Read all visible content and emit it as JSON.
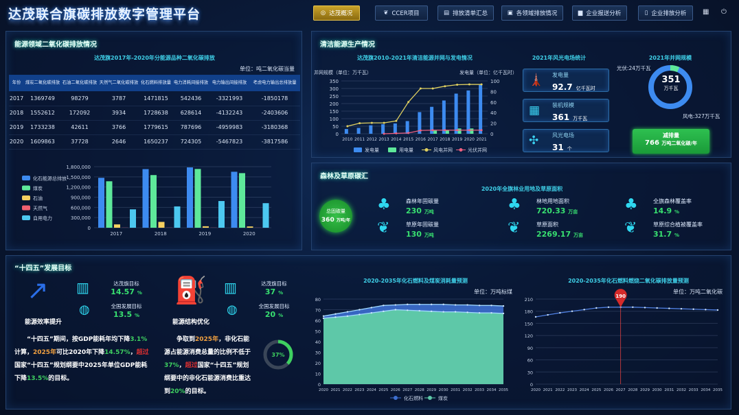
{
  "header": {
    "title": "达茂联合旗碳排放数字管理平台",
    "nav": [
      {
        "label": "达茂概况",
        "icon": "globe-icon",
        "active": true
      },
      {
        "label": "CCER项目",
        "icon": "leaf-icon"
      },
      {
        "label": "排放清单汇总",
        "icon": "list-icon"
      },
      {
        "label": "各领域排放情况",
        "icon": "clipboard-icon"
      },
      {
        "label": "企业报送分析",
        "icon": "chart-icon"
      },
      {
        "label": "企业排放分析",
        "icon": "document-icon"
      }
    ],
    "icons": [
      "calendar-icon",
      "power-icon"
    ]
  },
  "emissions": {
    "title": "能源领域二氧化碳排放情况",
    "table_title": "达茂旗2017年-2020年分能源品种二氧化碳排放",
    "unit": "单位：吨二氧化碳当量",
    "headers": [
      "年份",
      "煤炭二氧化碳排放",
      "石油二氧化碳排放",
      "天然气二氧化碳排放",
      "化石燃料排放量",
      "电力消耗间接排放",
      "电力输出间接排放",
      "考虑电力输出总排放量"
    ],
    "rows": [
      [
        "2017",
        "1369749",
        "98279",
        "3787",
        "1471815",
        "542436",
        "-3321993",
        "-1850178"
      ],
      [
        "2018",
        "1552612",
        "172092",
        "3934",
        "1728638",
        "628614",
        "-4132243",
        "-2403606"
      ],
      [
        "2019",
        "1733238",
        "42611",
        "3766",
        "1779615",
        "787696",
        "-4959983",
        "-3180368"
      ],
      [
        "2020",
        "1609863",
        "37728",
        "2646",
        "1650237",
        "724305",
        "-5467823",
        "-3817586"
      ]
    ]
  },
  "clean_energy": {
    "title": "清洁能源生产情况",
    "wind_solar": {
      "title": "2021年风光电场统计",
      "items": [
        {
          "label": "发电量",
          "value": "92.7",
          "unit": "亿千瓦时",
          "icon": "power-tower-icon"
        },
        {
          "label": "装机规模",
          "value": "361",
          "unit": "万千瓦",
          "icon": "solar-panel-icon"
        },
        {
          "label": "风光电场",
          "value": "31",
          "unit": "个",
          "icon": "wind-turbine-icon"
        }
      ]
    },
    "grid": {
      "title": "2021年并网规模",
      "total": "351",
      "unit": "万千瓦",
      "pv_label": "光伏:24万千瓦",
      "wind_label": "风电:327万千瓦",
      "pv_value": 24,
      "wind_value": 327,
      "pv_color": "#5ee89a",
      "wind_color": "#3d8bf0"
    },
    "reduction": {
      "label": "减排量",
      "value": "766",
      "unit": "万吨二氧化碳/年"
    }
  },
  "forest": {
    "title": "森林及草原碳汇",
    "subtitle": "2020年全旗林业用地及草原面积",
    "total": {
      "label": "总固碳量",
      "value": "360",
      "unit": "万吨/年"
    },
    "items": [
      {
        "label": "森林年固碳量",
        "value": "230",
        "unit": "万吨",
        "icon": "tree-icon"
      },
      {
        "label": "草原年固碳量",
        "value": "130",
        "unit": "万吨",
        "icon": "sprout-icon"
      },
      {
        "label": "林地用地面积",
        "value": "720.33",
        "unit": "万亩",
        "icon": "tree-icon"
      },
      {
        "label": "草原面积",
        "value": "2269.17",
        "unit": "万亩",
        "icon": "sprout-icon"
      },
      {
        "label": "全旗森林覆盖率",
        "value": "14.9",
        "unit": "%",
        "icon": "tree-icon"
      },
      {
        "label": "草原综合植被覆盖率",
        "value": "31.7",
        "unit": "%",
        "icon": "sprout-icon"
      }
    ]
  },
  "goals": {
    "title": "“十四五”发展目标",
    "efficiency": {
      "name": "能源效率提升",
      "local_label": "达茂旗目标",
      "local_value": "14.57",
      "national_label": "全国发展目标",
      "national_value": "13.5",
      "pct": "%",
      "paragraph": [
        {
          "t": "“十四五”期间，按GDP能耗年均下降"
        },
        {
          "t": "3.1%",
          "c": "#3ed060"
        },
        {
          "t": "计算，"
        },
        {
          "t": "2025年",
          "c": "#f0a040"
        },
        {
          "t": "可比2020年下降"
        },
        {
          "t": "14.57%",
          "c": "#3ed060"
        },
        {
          "t": "，"
        },
        {
          "t": "超过",
          "c": "#e03030"
        },
        {
          "t": "国家“十四五”规划纲要中2025年单位GDP能耗下降"
        },
        {
          "t": "13.5%",
          "c": "#3ed060"
        },
        {
          "t": "的目标。"
        }
      ]
    },
    "structure": {
      "name": "能源结构优化",
      "local_label": "达茂旗目标",
      "local_value": "37",
      "national_label": "全国发展目标",
      "national_value": "20",
      "pct": "%",
      "ring_label": "37%",
      "ring_value": 37,
      "paragraph": [
        {
          "t": "争取到"
        },
        {
          "t": "2025年",
          "c": "#f0a040"
        },
        {
          "t": "，非化石能源占能源消费总量的比例不低于"
        },
        {
          "t": "37%",
          "c": "#3ed060"
        },
        {
          "t": "，"
        },
        {
          "t": "超过",
          "c": "#e03030"
        },
        {
          "t": "国家“十四五”规划纲要中的非化石能源消费比重达到"
        },
        {
          "t": "20%",
          "c": "#3ed060"
        },
        {
          "t": "的目标。"
        }
      ]
    }
  },
  "chart_data": [
    {
      "id": "emissions-bar",
      "type": "bar",
      "categories": [
        "2017",
        "2018",
        "2019",
        "2020"
      ],
      "ylim": [
        0,
        1800000
      ],
      "yticks": [
        "0",
        "300,000",
        "600,000",
        "900,000",
        "1,200,000",
        "1,500,000",
        "1,800,000"
      ],
      "legend": "left",
      "series": [
        {
          "name": "化石能源总排放",
          "color": "#3d8bf0",
          "values": [
            1471815,
            1728638,
            1779615,
            1650237
          ]
        },
        {
          "name": "煤炭",
          "color": "#5ee89a",
          "values": [
            1369749,
            1552612,
            1733238,
            1609863
          ]
        },
        {
          "name": "石油",
          "color": "#f5d060",
          "values": [
            98279,
            172092,
            42611,
            37728
          ]
        },
        {
          "name": "天然气",
          "color": "#f06070",
          "values": [
            3787,
            3934,
            3766,
            2646
          ]
        },
        {
          "name": "自用电力",
          "color": "#4cc8f0",
          "values": [
            542436,
            628614,
            787696,
            724305
          ]
        }
      ]
    },
    {
      "id": "clean-energy-combo",
      "type": "bar",
      "title": "达茂旗2010-2021年清洁能源并网与发电情况",
      "ylabel": "并网规模（单位：万千瓦）",
      "y2label": "发电量（单位：亿千瓦时）",
      "ylim": [
        0,
        350
      ],
      "y2lim": [
        0,
        100
      ],
      "legend": "bottom",
      "categories": [
        "2010",
        "2011",
        "2012",
        "2013",
        "2014",
        "2015",
        "2016",
        "2017",
        "2018",
        "2019",
        "2020",
        "2021"
      ],
      "series": [
        {
          "name": "发电量",
          "type": "bar",
          "axis": "right",
          "color": "#3d8bf0",
          "values": [
            9,
            11,
            16,
            18,
            19.5,
            24,
            41,
            51,
            63,
            76,
            82,
            92.7
          ]
        },
        {
          "name": "用电量",
          "type": "bar",
          "axis": "right",
          "color": "#5ee89a",
          "values": [
            null,
            null,
            null,
            null,
            null,
            null,
            null,
            6,
            7,
            10,
            10,
            null
          ]
        },
        {
          "name": "风电并网",
          "type": "line",
          "axis": "left",
          "color": "#e0d060",
          "values": [
            50,
            70,
            72,
            72,
            85,
            210,
            300,
            300,
            315,
            325,
            327,
            327
          ]
        },
        {
          "name": "光伏并网",
          "type": "line",
          "axis": "left",
          "color": "#f06080",
          "values": [
            null,
            null,
            null,
            0,
            3,
            5,
            22,
            24,
            24,
            24,
            24,
            24
          ]
        }
      ]
    },
    {
      "id": "fossil-consumption-area",
      "type": "area",
      "title": "2020-2035年化石燃料及煤炭消耗量预测",
      "unit": "单位：万吨标煤",
      "ylim": [
        0,
        80
      ],
      "legend": "bottom",
      "categories": [
        "2020",
        "2021",
        "2022",
        "2023",
        "2024",
        "2025",
        "2026",
        "2027",
        "2028",
        "2029",
        "2030",
        "2031",
        "2032",
        "2033",
        "2034",
        "2035"
      ],
      "series": [
        {
          "name": "化石燃料",
          "color": "#3d6fd0",
          "values": [
            64,
            66,
            68,
            70,
            72,
            74,
            74.5,
            75,
            75,
            75,
            75,
            74.5,
            74.5,
            74,
            74,
            73.5
          ]
        },
        {
          "name": "煤炭",
          "color": "#5ec8a8",
          "values": [
            62,
            63,
            64,
            65.5,
            67,
            68.5,
            70,
            69.5,
            69,
            68.5,
            68,
            68,
            67.5,
            67,
            67,
            66.5
          ]
        }
      ]
    },
    {
      "id": "co2-forecast-line",
      "type": "line",
      "title": "2020-2035年化石燃料燃烧二氧化碳排放量预测",
      "unit": "单位：万吨二氧化碳",
      "ylim": [
        0,
        210
      ],
      "marker": {
        "category": "2027",
        "label": "190"
      },
      "categories": [
        "2020",
        "2021",
        "2022",
        "2023",
        "2024",
        "2025",
        "2026",
        "2027",
        "2028",
        "2029",
        "2030",
        "2031",
        "2032",
        "2033",
        "2034",
        "2035"
      ],
      "series": [
        {
          "color": "#4f7fe0",
          "values": [
            166,
            171,
            176,
            180,
            184,
            188,
            190,
            190,
            190,
            189,
            188,
            187,
            186,
            185,
            184,
            183
          ]
        }
      ]
    }
  ]
}
